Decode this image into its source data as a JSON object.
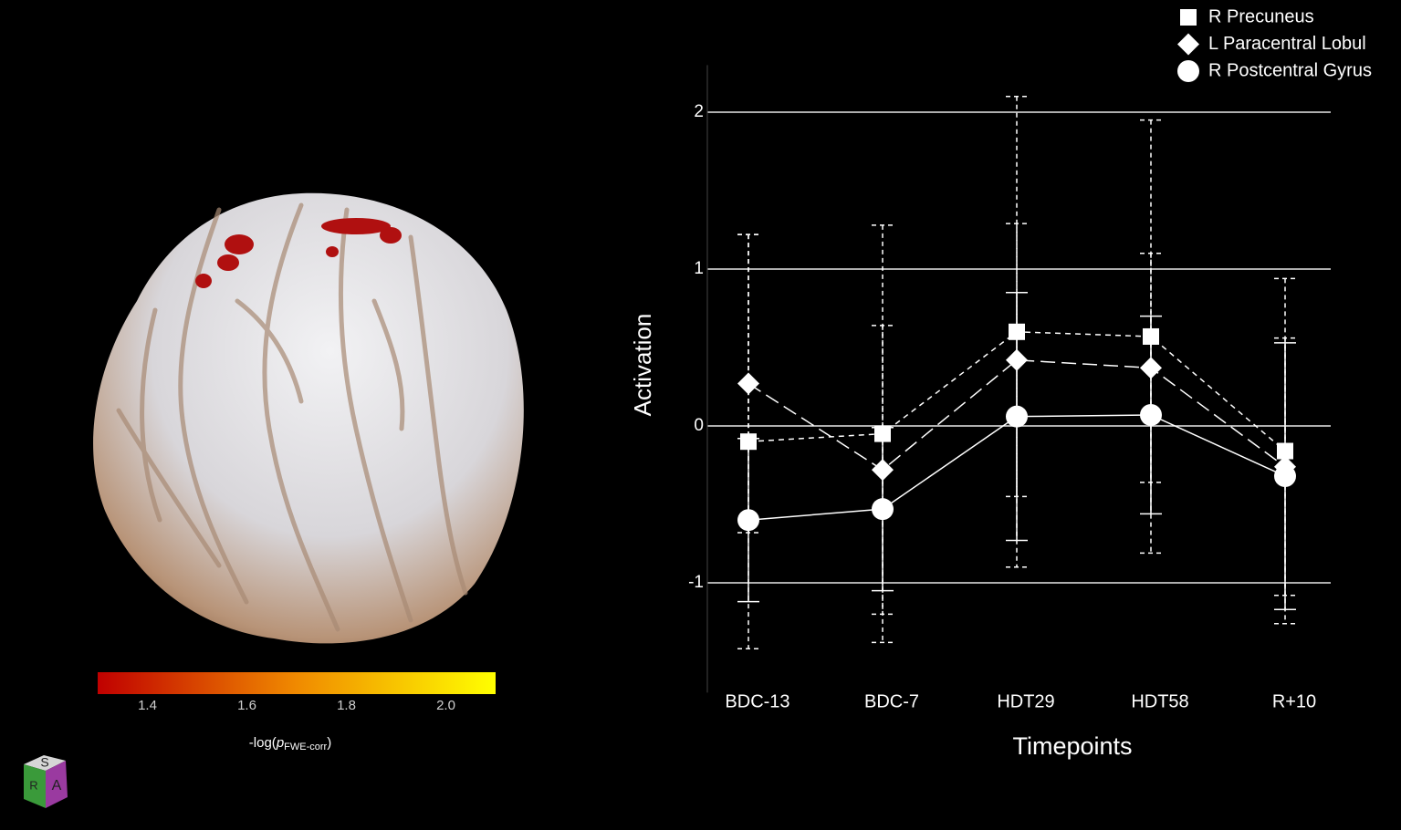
{
  "chart_data": {
    "type": "line",
    "x_label": "Timepoints",
    "y_label": "Activation",
    "categories": [
      "BDC-13",
      "BDC-7",
      "HDT29",
      "HDT58",
      "R+10"
    ],
    "series": [
      {
        "name": "R Precuneus",
        "color": "#ffffff",
        "marker": "square",
        "line_style": "dotted",
        "values": [
          -0.1,
          -0.05,
          0.6,
          0.57,
          -0.16
        ],
        "errors": [
          1.32,
          1.33,
          1.5,
          1.38,
          1.1
        ]
      },
      {
        "name": "L Paracentral Lobul",
        "color": "#ffffff",
        "marker": "diamond",
        "line_style": "dashed",
        "values": [
          0.27,
          -0.28,
          0.42,
          0.37,
          -0.26
        ],
        "errors": [
          0.95,
          0.92,
          0.87,
          0.73,
          0.82
        ]
      },
      {
        "name": "R Postcentral Gyrus",
        "color": "#ffffff",
        "marker": "circle",
        "line_style": "solid",
        "values": [
          -0.6,
          -0.53,
          0.06,
          0.07,
          -0.32
        ],
        "errors": [
          0.52,
          0.52,
          0.79,
          0.63,
          0.85
        ]
      }
    ],
    "ylim": [
      -1.7,
      2.3
    ],
    "yticks": [
      -1,
      0,
      1,
      2
    ],
    "grid": true,
    "legend": "top-right"
  },
  "brain_panel": {
    "colorbar": {
      "lim": [
        1.3,
        2.1
      ],
      "colors": [
        "#c00000",
        "#f08a00",
        "#ffff00"
      ],
      "ticks": [
        1.4,
        1.6,
        1.8,
        {
          "value": 2,
          "label": "2.0"
        }
      ],
      "label_prefix": "-log(",
      "label_symbol": "p",
      "label_subscript": "FWE-corr",
      "label_suffix": ")"
    },
    "orientation_cube": {
      "top": "S",
      "left": "R",
      "front": "A"
    }
  }
}
